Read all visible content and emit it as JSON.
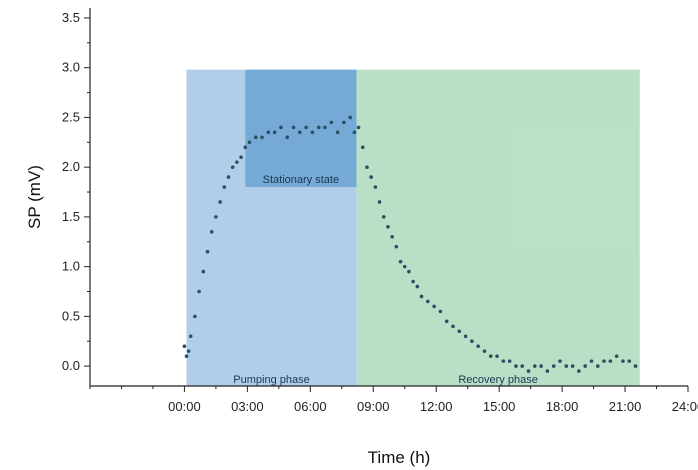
{
  "chart_data": {
    "type": "scatter",
    "title": "",
    "xlabel": "Time (h)",
    "ylabel": "SP (mV)",
    "xlim": [
      -4.5,
      24
    ],
    "ylim": [
      -0.2,
      3.6
    ],
    "x_ticks": [
      0,
      3,
      6,
      9,
      12,
      15,
      18,
      21,
      24
    ],
    "x_tick_labels": [
      "00:00",
      "03:00",
      "06:00",
      "09:00",
      "12:00",
      "15:00",
      "18:00",
      "21:00",
      "24:00"
    ],
    "y_ticks": [
      0,
      0.5,
      1,
      1.5,
      2,
      2.5,
      3,
      3.5
    ],
    "y_tick_labels": [
      "0.0",
      "0.5",
      "1.0",
      "1.5",
      "2.0",
      "2.5",
      "3.0",
      "3.5"
    ],
    "grid": false,
    "regions": [
      {
        "label": "Pumping phase",
        "x_start": 0.1,
        "x_end": 8.2,
        "y_start": -0.2,
        "y_end": 2.98,
        "color": "#a9c9e6"
      },
      {
        "label": "Stationary state",
        "x_start": 2.9,
        "x_end": 8.2,
        "y_start": 1.8,
        "y_end": 2.98,
        "color": "#6ea6d3"
      },
      {
        "label": "Recovery phase",
        "x_start": 8.2,
        "x_end": 21.7,
        "y_start": -0.2,
        "y_end": 2.98,
        "color": "#b3dbc1"
      }
    ],
    "series": [
      {
        "color": "#2d4f63",
        "x": [
          0,
          0.1,
          0.2,
          0.3,
          0.5,
          0.7,
          0.9,
          1.1,
          1.3,
          1.5,
          1.7,
          1.9,
          2.1,
          2.3,
          2.5,
          2.7,
          2.9,
          3.1,
          3.4,
          3.7,
          4.0,
          4.3,
          4.6,
          4.9,
          5.2,
          5.5,
          5.8,
          6.1,
          6.4,
          6.7,
          7.0,
          7.3,
          7.6,
          7.9,
          8.1,
          8.3,
          8.5,
          8.7,
          8.9,
          9.1,
          9.3,
          9.5,
          9.7,
          9.9,
          10.1,
          10.3,
          10.5,
          10.7,
          10.9,
          11.1,
          11.3,
          11.6,
          11.9,
          12.2,
          12.5,
          12.8,
          13.1,
          13.4,
          13.7,
          14.0,
          14.3,
          14.6,
          14.9,
          15.2,
          15.5,
          15.8,
          16.1,
          16.4,
          16.7,
          17.0,
          17.3,
          17.6,
          17.9,
          18.2,
          18.5,
          18.8,
          19.1,
          19.4,
          19.7,
          20.0,
          20.3,
          20.6,
          20.9,
          21.2,
          21.5
        ],
        "y": [
          0.2,
          0.1,
          0.15,
          0.3,
          0.5,
          0.75,
          0.95,
          1.15,
          1.35,
          1.5,
          1.65,
          1.8,
          1.9,
          2.0,
          2.05,
          2.1,
          2.2,
          2.25,
          2.3,
          2.3,
          2.35,
          2.35,
          2.4,
          2.3,
          2.4,
          2.35,
          2.4,
          2.35,
          2.4,
          2.4,
          2.45,
          2.35,
          2.45,
          2.5,
          2.35,
          2.4,
          2.2,
          2.0,
          1.9,
          1.8,
          1.65,
          1.5,
          1.4,
          1.3,
          1.2,
          1.05,
          1.0,
          0.95,
          0.85,
          0.8,
          0.7,
          0.65,
          0.6,
          0.55,
          0.45,
          0.4,
          0.35,
          0.3,
          0.25,
          0.2,
          0.15,
          0.1,
          0.1,
          0.05,
          0.05,
          0.0,
          0.0,
          -0.05,
          0.0,
          0.0,
          -0.05,
          0.0,
          0.05,
          0.0,
          0.0,
          -0.05,
          0.0,
          0.05,
          0.0,
          0.05,
          0.05,
          0.1,
          0.05,
          0.05,
          0.0
        ]
      }
    ]
  }
}
